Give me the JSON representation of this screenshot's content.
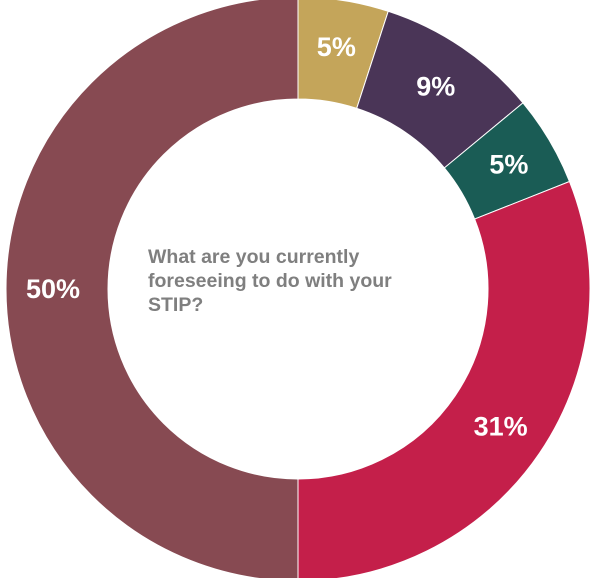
{
  "chart_data": {
    "type": "pie",
    "title": "What are you currently foreseeing to do with your STIP?",
    "slices": [
      {
        "value": 5,
        "label": "5%",
        "color": "#C4A55A"
      },
      {
        "value": 9,
        "label": "9%",
        "color": "#4A3557"
      },
      {
        "value": 5,
        "label": "5%",
        "color": "#1A5C55"
      },
      {
        "value": 31,
        "label": "31%",
        "color": "#C41F4A"
      },
      {
        "value": 50,
        "label": "50%",
        "color": "#874A52"
      }
    ],
    "start_angle_deg": 0,
    "direction": "clockwise",
    "donut": true,
    "legend": "none"
  }
}
